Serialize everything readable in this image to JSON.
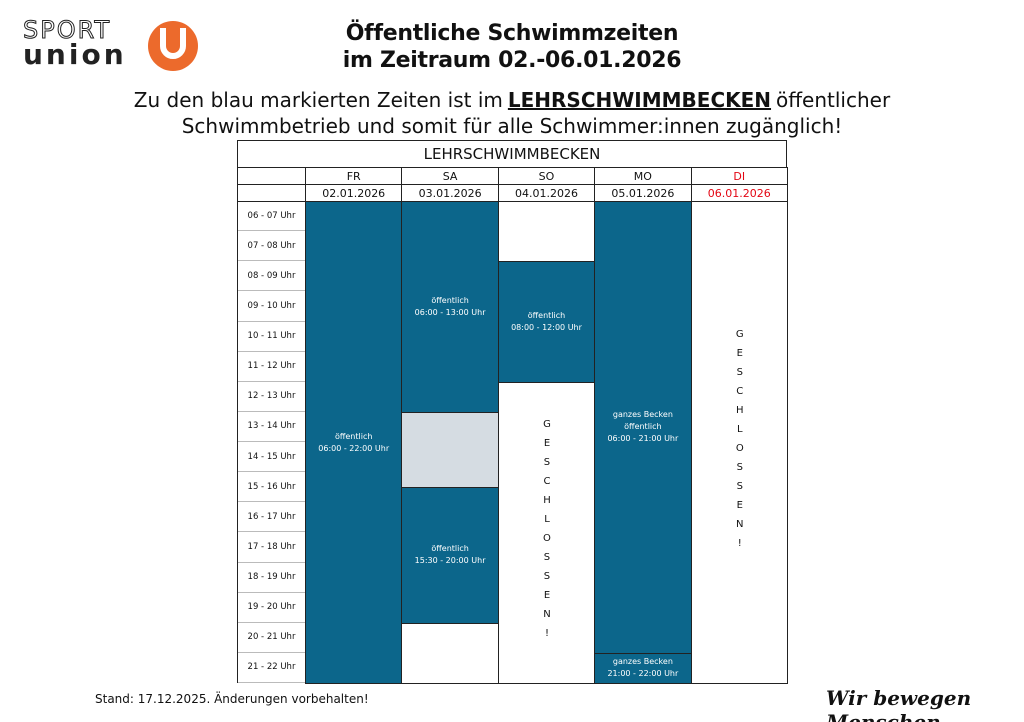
{
  "logo": {
    "line1": "SPORT",
    "line2": "union"
  },
  "header": {
    "title_line1": "Öffentliche Schwimmzeiten",
    "title_line2": "im Zeitraum 02.-06.01.2026"
  },
  "intro": {
    "line1_before": "Zu den blau markierten Zeiten ist im",
    "line1_highlight": "LEHRSCHWIMMBECKEN",
    "line1_after": "öffentlicher",
    "line2": "Schwimmbetrieb und somit für alle Schwimmer:innen zugänglich!"
  },
  "table": {
    "title": "LEHRSCHWIMMBECKEN",
    "times": [
      "06 - 07 Uhr",
      "07 - 08 Uhr",
      "08 - 09 Uhr",
      "09 - 10 Uhr",
      "10 - 11 Uhr",
      "11 - 12 Uhr",
      "12 - 13 Uhr",
      "13 - 14 Uhr",
      "14 - 15 Uhr",
      "15 - 16 Uhr",
      "16 - 17 Uhr",
      "17 - 18 Uhr",
      "18 - 19 Uhr",
      "19 - 20 Uhr",
      "20 - 21 Uhr",
      "21 - 22 Uhr"
    ],
    "days": [
      {
        "name": "FR",
        "date": "02.01.2026",
        "blocks": [
          {
            "lines": [
              "öffentlich",
              "06:00 - 22:00 Uhr"
            ]
          }
        ]
      },
      {
        "name": "SA",
        "date": "03.01.2026",
        "blocks": [
          {
            "lines": [
              "öffentlich",
              "06:00 - 13:00 Uhr"
            ]
          },
          {
            "lines": [
              "öffentlich",
              "15:30 - 20:00 Uhr"
            ]
          }
        ]
      },
      {
        "name": "SO",
        "date": "04.01.2026",
        "blocks": [
          {
            "lines": [
              "öffentlich",
              "08:00 - 12:00 Uhr"
            ]
          },
          {
            "lines": [
              "GESCHLOSSEN!"
            ]
          }
        ]
      },
      {
        "name": "MO",
        "date": "05.01.2026",
        "blocks": [
          {
            "lines": [
              "ganzes Becken",
              "öffentlich",
              "06:00 - 21:00 Uhr"
            ]
          },
          {
            "lines": [
              "ganzes Becken",
              "21:00 - 22:00 Uhr"
            ]
          }
        ]
      },
      {
        "name": "DI",
        "date": "06.01.2026",
        "color": "#e30613",
        "blocks": [
          {
            "lines": [
              "GESCHLOSSEN!"
            ]
          }
        ]
      }
    ]
  },
  "footer": {
    "note": "Stand: 17.12.2025. Änderungen vorbehalten!",
    "slogan": "Wir bewegen Menschen"
  }
}
